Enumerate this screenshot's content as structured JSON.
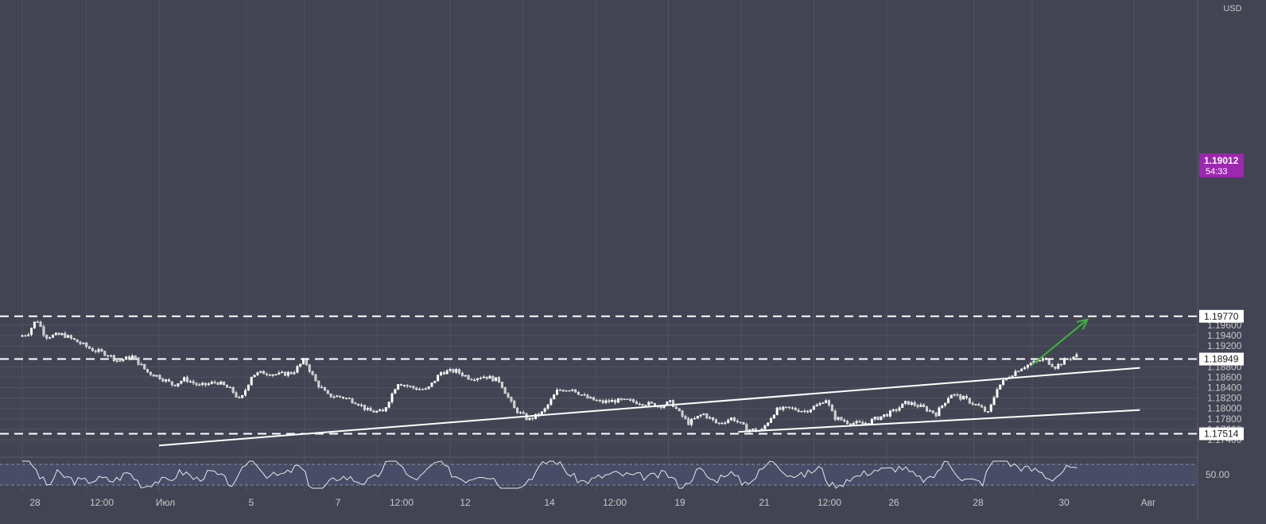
{
  "chart_data": {
    "type": "candlestick",
    "currency_label": "USD",
    "y_ticks": [
      "1.17400",
      "1.17600",
      "1.17800",
      "1.18000",
      "1.18200",
      "1.18400",
      "1.18600",
      "1.18800",
      "1.19200",
      "1.19400",
      "1.19600"
    ],
    "x_ticks": [
      "28",
      "12:00",
      "Июл",
      "5",
      "7",
      "12:00",
      "12",
      "14",
      "12:00",
      "19",
      "21",
      "12:00",
      "26",
      "28",
      "30",
      "Авг"
    ],
    "price_levels": [
      {
        "price": 1.1977,
        "label": "1.19770"
      },
      {
        "price": 1.18949,
        "label": "1.18949"
      },
      {
        "price": 1.17514,
        "label": "1.17514"
      }
    ],
    "last_price": {
      "label": "1.19012",
      "countdown": "54:33",
      "color": "#9c27b0"
    },
    "trend_lines": [
      {
        "name": "lower-support",
        "from": {
          "day": 4.7,
          "price": 1.1729
        },
        "to": {
          "day": 38.4,
          "price": 1.1878
        }
      },
      {
        "name": "upper-channel",
        "from": {
          "day": 24.6,
          "price": 1.1755
        },
        "to": {
          "day": 38.4,
          "price": 1.1797
        }
      }
    ],
    "projection_arrow": {
      "from": {
        "day": 34.7,
        "price": 1.1884
      },
      "to": {
        "day": 36.6,
        "price": 1.1971
      },
      "color": "#3bb33b"
    },
    "ohlc_path": [
      [
        0.0,
        1.1938
      ],
      [
        0.3,
        1.1944
      ],
      [
        0.6,
        1.1972
      ],
      [
        0.9,
        1.1938
      ],
      [
        1.5,
        1.1942
      ],
      [
        2.1,
        1.1925
      ],
      [
        2.5,
        1.1913
      ],
      [
        3.0,
        1.1905
      ],
      [
        3.4,
        1.1891
      ],
      [
        3.9,
        1.19
      ],
      [
        4.4,
        1.187
      ],
      [
        4.8,
        1.1861
      ],
      [
        5.3,
        1.1845
      ],
      [
        5.7,
        1.1857
      ],
      [
        6.2,
        1.1843
      ],
      [
        6.8,
        1.1851
      ],
      [
        7.3,
        1.1835
      ],
      [
        7.6,
        1.1814
      ],
      [
        8.0,
        1.1865
      ],
      [
        8.4,
        1.1869
      ],
      [
        8.9,
        1.1865
      ],
      [
        9.4,
        1.1869
      ],
      [
        9.8,
        1.1893
      ],
      [
        10.2,
        1.185
      ],
      [
        10.6,
        1.1825
      ],
      [
        11.1,
        1.1822
      ],
      [
        11.6,
        1.1812
      ],
      [
        12.0,
        1.1795
      ],
      [
        12.5,
        1.1793
      ],
      [
        13.0,
        1.185
      ],
      [
        13.5,
        1.184
      ],
      [
        14.0,
        1.1835
      ],
      [
        14.5,
        1.187
      ],
      [
        15.0,
        1.1872
      ],
      [
        15.5,
        1.1858
      ],
      [
        16.0,
        1.1862
      ],
      [
        16.5,
        1.1853
      ],
      [
        17.0,
        1.18
      ],
      [
        17.5,
        1.1778
      ],
      [
        18.0,
        1.1793
      ],
      [
        18.5,
        1.1835
      ],
      [
        19.0,
        1.1838
      ],
      [
        19.5,
        1.182
      ],
      [
        20.0,
        1.1812
      ],
      [
        20.5,
        1.1815
      ],
      [
        21.0,
        1.1814
      ],
      [
        21.5,
        1.181
      ],
      [
        22.0,
        1.1805
      ],
      [
        22.4,
        1.1812
      ],
      [
        22.7,
        1.179
      ],
      [
        23.0,
        1.1772
      ],
      [
        23.5,
        1.179
      ],
      [
        24.0,
        1.177
      ],
      [
        24.5,
        1.1782
      ],
      [
        25.0,
        1.176
      ],
      [
        25.5,
        1.1757
      ],
      [
        26.0,
        1.1797
      ],
      [
        26.5,
        1.18
      ],
      [
        27.0,
        1.1795
      ],
      [
        27.5,
        1.1808
      ],
      [
        27.7,
        1.182
      ],
      [
        28.0,
        1.1783
      ],
      [
        28.5,
        1.1773
      ],
      [
        29.0,
        1.177
      ],
      [
        29.5,
        1.1782
      ],
      [
        30.0,
        1.1793
      ],
      [
        30.5,
        1.1812
      ],
      [
        31.0,
        1.1803
      ],
      [
        31.5,
        1.179
      ],
      [
        32.0,
        1.1828
      ],
      [
        32.5,
        1.1818
      ],
      [
        33.0,
        1.1803
      ],
      [
        33.3,
        1.179
      ],
      [
        33.6,
        1.184
      ],
      [
        34.0,
        1.1862
      ],
      [
        34.4,
        1.1878
      ],
      [
        34.8,
        1.1887
      ],
      [
        35.2,
        1.1895
      ],
      [
        35.6,
        1.188
      ],
      [
        36.0,
        1.1895
      ],
      [
        36.3,
        1.1901
      ]
    ],
    "indicator": {
      "label": "50.00",
      "level": 50
    }
  }
}
